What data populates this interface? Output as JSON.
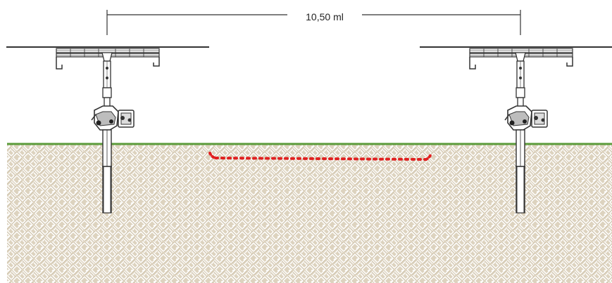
{
  "dimension": {
    "label": "10,50 ml"
  },
  "colors": {
    "ground_fill": "#ddd3bf",
    "ground_pattern": "#ffffff",
    "grass": "#5b9b3a",
    "structure": "#333333",
    "cable": "#e02020"
  },
  "structures": [
    {
      "name": "left-tracker"
    },
    {
      "name": "right-tracker"
    }
  ]
}
